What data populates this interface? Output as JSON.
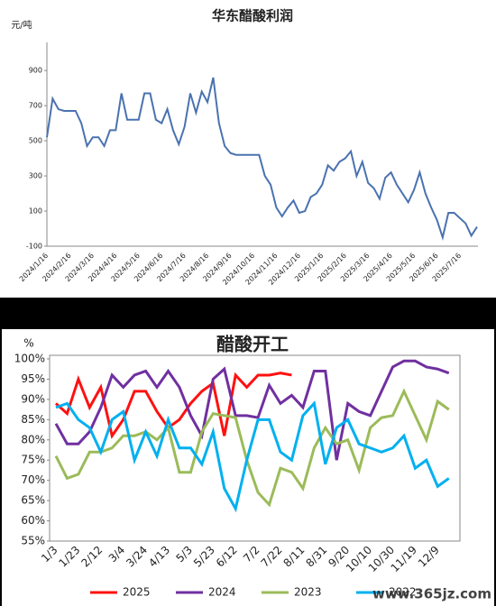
{
  "chart_data": [
    {
      "type": "line",
      "title": "华东醋酸利润",
      "y_unit_label": "元/吨",
      "color": "#4a72b0",
      "categories": [
        "2024/1/16",
        null,
        null,
        null,
        "2024/2/16",
        null,
        null,
        null,
        "2024/3/16",
        null,
        null,
        null,
        "2024/4/16",
        null,
        null,
        null,
        "2024/5/16",
        null,
        null,
        null,
        "2024/6/16",
        null,
        null,
        null,
        "2024/7/16",
        null,
        null,
        null,
        "2024/8/16",
        null,
        null,
        null,
        "2024/9/16",
        null,
        null,
        null,
        "2024/10/16",
        null,
        null,
        null,
        "2024/11/16",
        null,
        null,
        null,
        "2024/12/16",
        null,
        null,
        null,
        "2025/1/16",
        null,
        null,
        null,
        "2025/2/16",
        null,
        null,
        null,
        "2025/3/16",
        null,
        null,
        null,
        "2025/4/16",
        null,
        null,
        null,
        "2025/5/16",
        null,
        null,
        null,
        "2025/6/16",
        null,
        null,
        null,
        "2025/7/16",
        null,
        null,
        null
      ],
      "values": [
        520,
        740,
        680,
        670,
        670,
        670,
        600,
        470,
        520,
        520,
        470,
        560,
        560,
        770,
        620,
        620,
        620,
        770,
        770,
        620,
        600,
        680,
        560,
        480,
        580,
        770,
        660,
        780,
        720,
        860,
        600,
        470,
        430,
        420,
        420,
        420,
        420,
        420,
        300,
        250,
        120,
        70,
        120,
        160,
        90,
        100,
        180,
        200,
        250,
        360,
        330,
        380,
        400,
        440,
        300,
        380,
        260,
        230,
        170,
        290,
        320,
        250,
        200,
        150,
        220,
        320,
        200,
        120,
        50,
        -50,
        90,
        90,
        60,
        30,
        -40,
        10
      ],
      "ylim": [
        -100,
        1060
      ],
      "yticks": [
        -100,
        100,
        300,
        500,
        700,
        900
      ]
    },
    {
      "type": "line",
      "title": "醋酸开工",
      "y_unit_label": "%",
      "categories": [
        "1/3",
        null,
        "1/23",
        null,
        "2/12",
        null,
        "3/4",
        null,
        "3/24",
        null,
        "4/13",
        null,
        "5/3",
        null,
        "5/23",
        null,
        "6/12",
        null,
        "7/2",
        null,
        "7/22",
        null,
        "8/11",
        null,
        "8/31",
        null,
        "9/20",
        null,
        "10/10",
        null,
        "10/30",
        null,
        "11/19",
        null,
        "12/9",
        null
      ],
      "series": [
        {
          "name": "2025",
          "color": "#ff1010",
          "values": [
            89,
            86.5,
            95,
            88,
            93,
            81,
            85,
            92,
            92,
            87,
            83,
            85,
            89,
            92,
            94,
            81,
            96,
            93,
            96,
            96,
            96.5,
            96,
            null,
            null,
            null,
            null,
            null,
            null,
            null,
            null,
            null,
            null,
            null,
            null,
            null,
            null
          ]
        },
        {
          "name": "2024",
          "color": "#7030a0",
          "values": [
            84,
            79,
            79,
            82,
            88,
            96,
            93,
            96,
            97,
            93,
            97,
            93,
            86,
            81,
            95,
            97.5,
            86,
            86,
            85.5,
            93.5,
            89,
            91,
            88,
            97,
            97,
            75,
            89,
            87,
            86,
            92,
            98,
            99.5,
            99.5,
            98,
            97.5,
            96.5
          ]
        },
        {
          "name": "2023",
          "color": "#9bbb59",
          "values": [
            76,
            70.5,
            71.5,
            77,
            77,
            78,
            81,
            81,
            82,
            80,
            83,
            72,
            72,
            82,
            86.5,
            86,
            85.5,
            75,
            67,
            64,
            73,
            72,
            68,
            78,
            83,
            79,
            80,
            72.5,
            83,
            85.5,
            86,
            92,
            86,
            80,
            89.5,
            87.5
          ]
        },
        {
          "name": "2022",
          "color": "#00b0f0",
          "values": [
            88,
            89,
            85,
            83,
            77,
            85,
            87,
            75,
            82,
            76,
            85,
            78,
            78,
            74,
            82,
            68,
            63,
            75,
            85,
            85,
            77,
            75,
            86,
            89,
            74,
            83,
            85,
            79,
            78,
            77,
            78,
            81,
            73,
            75,
            68.5,
            70.5
          ]
        }
      ],
      "ylim": [
        55,
        100
      ],
      "yticks": [
        {
          "value": 55,
          "label": "55%"
        },
        {
          "value": 60,
          "label": "60%"
        },
        {
          "value": 65,
          "label": "65%"
        },
        {
          "value": 70,
          "label": "70%"
        },
        {
          "value": 75,
          "label": "75%"
        },
        {
          "value": 80,
          "label": "80%"
        },
        {
          "value": 85,
          "label": "85%"
        },
        {
          "value": 90,
          "label": "90%"
        },
        {
          "value": 95,
          "label": "95%"
        },
        {
          "value": 100,
          "label": "100%"
        }
      ]
    }
  ],
  "watermark": "www.365jz.com"
}
